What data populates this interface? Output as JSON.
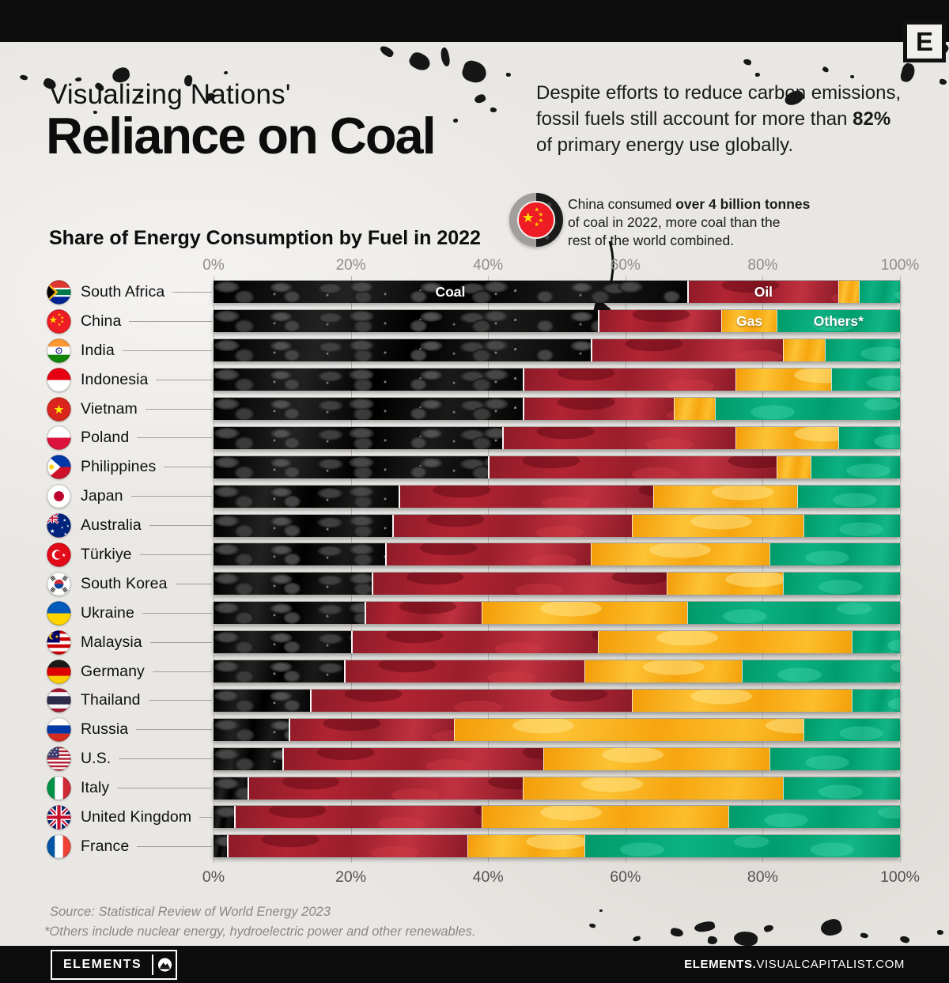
{
  "header": {
    "logo_letter": "E"
  },
  "title": {
    "kicker": "Visualizing Nations'",
    "main": "Reliance on Coal"
  },
  "intro": {
    "line1": "Despite efforts to reduce carbon emissions,",
    "line2_pre": "fossil fuels still account for more than ",
    "line2_bold": "82%",
    "line3": "of primary energy use globally."
  },
  "chart_title": "Share of Energy Consumption by Fuel in 2022",
  "callout": {
    "line1_pre": "China consumed ",
    "line1_bold": "over 4 billion tonnes",
    "line2": "of coal in 2022, more coal than the",
    "line3": "rest of the world combined."
  },
  "chart_data": {
    "type": "bar",
    "stacked": true,
    "orientation": "horizontal",
    "unit": "%",
    "axis_range": [
      0,
      100
    ],
    "x_ticks": [
      "0%",
      "20%",
      "40%",
      "60%",
      "80%",
      "100%"
    ],
    "grid": true,
    "legend": {
      "coal": "Coal",
      "oil": "Oil",
      "gas": "Gas",
      "others": "Others*"
    },
    "colors": {
      "coal": "#0b0b0b",
      "oil": "#a81f2f",
      "gas": "#f8a816",
      "others": "#00a474"
    },
    "series": [
      {
        "country": "South Africa",
        "coal": 69,
        "oil": 22,
        "gas": 3,
        "others": 6
      },
      {
        "country": "China",
        "coal": 56,
        "oil": 18,
        "gas": 8,
        "others": 18
      },
      {
        "country": "India",
        "coal": 55,
        "oil": 28,
        "gas": 6,
        "others": 11
      },
      {
        "country": "Indonesia",
        "coal": 45,
        "oil": 31,
        "gas": 14,
        "others": 10
      },
      {
        "country": "Vietnam",
        "coal": 45,
        "oil": 22,
        "gas": 6,
        "others": 27
      },
      {
        "country": "Poland",
        "coal": 42,
        "oil": 34,
        "gas": 15,
        "others": 9
      },
      {
        "country": "Philippines",
        "coal": 40,
        "oil": 42,
        "gas": 5,
        "others": 13
      },
      {
        "country": "Japan",
        "coal": 27,
        "oil": 37,
        "gas": 21,
        "others": 15
      },
      {
        "country": "Australia",
        "coal": 26,
        "oil": 35,
        "gas": 25,
        "others": 14
      },
      {
        "country": "Türkiye",
        "coal": 25,
        "oil": 30,
        "gas": 26,
        "others": 19
      },
      {
        "country": "South Korea",
        "coal": 23,
        "oil": 43,
        "gas": 17,
        "others": 17
      },
      {
        "country": "Ukraine",
        "coal": 22,
        "oil": 17,
        "gas": 30,
        "others": 31
      },
      {
        "country": "Malaysia",
        "coal": 20,
        "oil": 36,
        "gas": 37,
        "others": 7
      },
      {
        "country": "Germany",
        "coal": 19,
        "oil": 35,
        "gas": 23,
        "others": 23
      },
      {
        "country": "Thailand",
        "coal": 14,
        "oil": 47,
        "gas": 32,
        "others": 7
      },
      {
        "country": "Russia",
        "coal": 11,
        "oil": 24,
        "gas": 51,
        "others": 14
      },
      {
        "country": "U.S.",
        "coal": 10,
        "oil": 38,
        "gas": 33,
        "others": 19
      },
      {
        "country": "Italy",
        "coal": 5,
        "oil": 40,
        "gas": 38,
        "others": 17
      },
      {
        "country": "United Kingdom",
        "coal": 3,
        "oil": 36,
        "gas": 36,
        "others": 25
      },
      {
        "country": "France",
        "coal": 2,
        "oil": 35,
        "gas": 17,
        "others": 46
      }
    ]
  },
  "notes": {
    "source": "Source: Statistical Review of World Energy 2023",
    "footnote": "*Others include nuclear energy, hydroelectric power and other renewables."
  },
  "footer": {
    "logo": "ELEMENTS",
    "site_bold": "ELEMENTS.",
    "site_rest": "VISUALCAPITALIST.COM"
  }
}
